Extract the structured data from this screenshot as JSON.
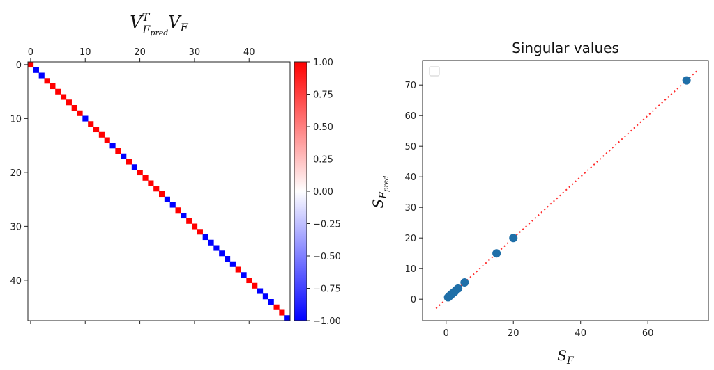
{
  "chart_data": [
    {
      "type": "heatmap",
      "title_main": "V",
      "title_sup": "T",
      "title_sub1": "F",
      "title_subsub": "pred",
      "title_main2": "V",
      "title_sub2": "F",
      "n": 48,
      "xlim": [
        -0.5,
        47.5
      ],
      "ylim": [
        -0.5,
        47.5
      ],
      "x_ticks": [
        0,
        10,
        20,
        30,
        40
      ],
      "y_ticks": [
        0,
        10,
        20,
        30,
        40
      ],
      "diagonal_signs": [
        1,
        -1,
        -1,
        1,
        1,
        1,
        1,
        1,
        1,
        1,
        -1,
        1,
        1,
        1,
        1,
        -1,
        1,
        -1,
        1,
        -1,
        1,
        1,
        1,
        1,
        1,
        -1,
        -1,
        1,
        -1,
        1,
        1,
        1,
        -1,
        -1,
        -1,
        -1,
        -1,
        -1,
        1,
        -1,
        1,
        1,
        -1,
        -1,
        -1,
        1,
        1,
        -1
      ],
      "off_diagonal_value": 0,
      "colormap": "bwr",
      "colorbar": {
        "min": -1.0,
        "max": 1.0,
        "ticks": [
          1.0,
          0.75,
          0.5,
          0.25,
          0.0,
          -0.25,
          -0.5,
          -0.75,
          -1.0
        ],
        "tick_labels": [
          "1.00",
          "0.75",
          "0.50",
          "0.25",
          "0.00",
          "−0.25",
          "−0.50",
          "−0.75",
          "−1.00"
        ],
        "low_color": "#0000ff",
        "mid_color": "#ffffff",
        "high_color": "#ff0000"
      }
    },
    {
      "type": "scatter",
      "title": "Singular values",
      "xlabel_main": "S",
      "xlabel_sub": "F",
      "ylabel_main": "S",
      "ylabel_sub": "F",
      "ylabel_subsub": "pred",
      "xlim": [
        -7,
        78
      ],
      "ylim": [
        -7,
        78
      ],
      "x_ticks": [
        0,
        20,
        40,
        60
      ],
      "y_ticks": [
        0,
        10,
        20,
        30,
        40,
        50,
        60,
        70
      ],
      "points": [
        {
          "x": 71.5,
          "y": 71.5
        },
        {
          "x": 20.0,
          "y": 20.0
        },
        {
          "x": 15.0,
          "y": 15.0
        },
        {
          "x": 5.5,
          "y": 5.5
        },
        {
          "x": 3.6,
          "y": 3.5
        },
        {
          "x": 3.0,
          "y": 3.0
        },
        {
          "x": 2.5,
          "y": 2.4
        },
        {
          "x": 2.0,
          "y": 2.0
        },
        {
          "x": 1.6,
          "y": 1.6
        },
        {
          "x": 1.2,
          "y": 1.2
        },
        {
          "x": 0.9,
          "y": 0.9
        },
        {
          "x": 0.6,
          "y": 0.6
        }
      ],
      "point_color": "#1f6fa8",
      "reference_line": {
        "from": [
          -3,
          -3
        ],
        "to": [
          75,
          75
        ],
        "color": "#ff2a2a",
        "style": "dotted"
      },
      "legend": {
        "location": "upper-left",
        "entries": []
      }
    }
  ]
}
